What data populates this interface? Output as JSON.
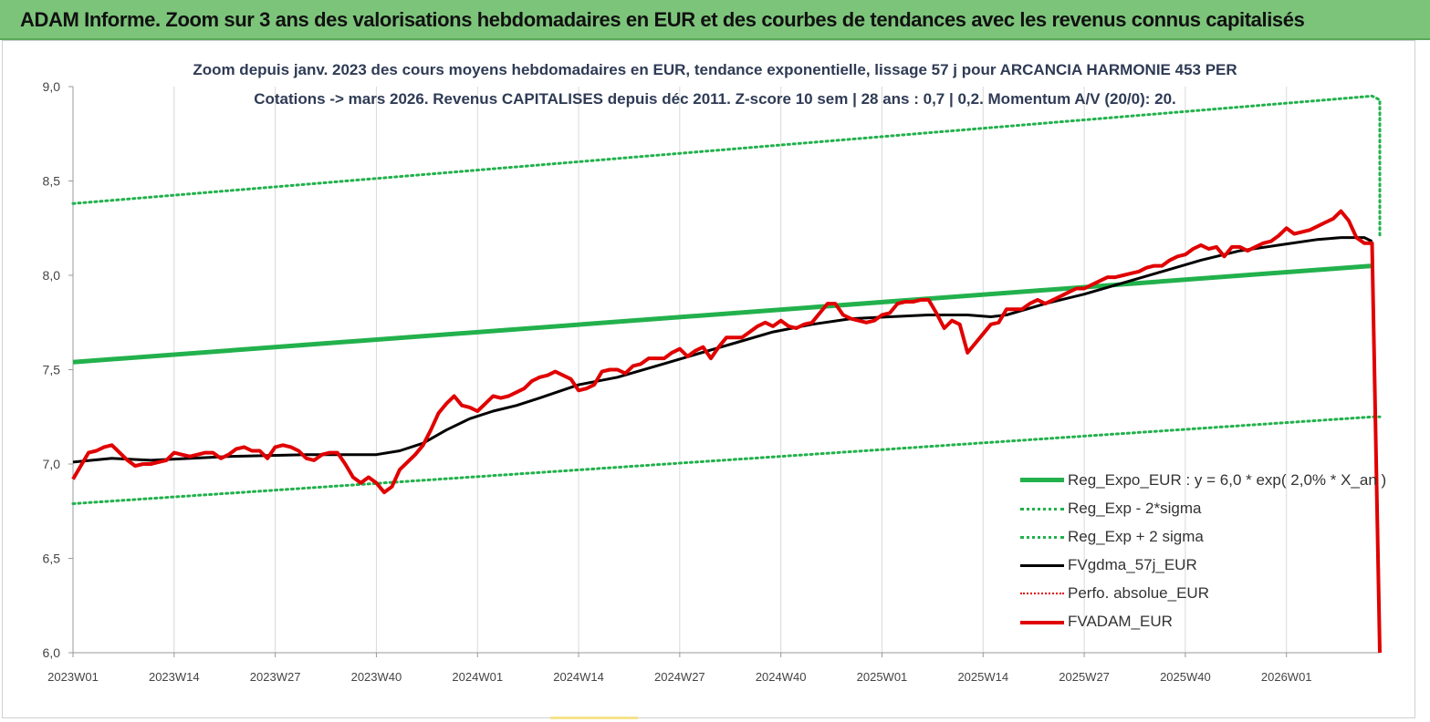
{
  "banner": {
    "title": "ADAM Informe. Zoom sur 3 ans des valorisations hebdomadaires en EUR et des courbes de tendances avec les revenus connus capitalisés"
  },
  "colors": {
    "banner_bg": "#7cc47a",
    "trend": "#22b14c",
    "fv_line": "#000000",
    "adam_line": "#e00000",
    "subtitle_text": "#2f3b55"
  },
  "chart_data": {
    "type": "line",
    "title": "Zoom depuis janv. 2023 des cours moyens hebdomadaires en EUR, tendance exponentielle, lissage 57 j pour ARCANCIA HARMONIE 453 PER",
    "subtitle": "Cotations -> mars 2026. Revenus CAPITALISES depuis déc 2011. Z-score 10 sem | 28 ans : 0,7 | 0,2. Momentum A/V (20/0): 20.",
    "xlabel": "",
    "ylabel": "",
    "ylim": [
      6.0,
      9.0
    ],
    "y_ticks": [
      "6,0",
      "6,5",
      "7,0",
      "7,5",
      "8,0",
      "8,5",
      "9,0"
    ],
    "x_ticks": [
      "2023W01",
      "2023W14",
      "2023W27",
      "2023W40",
      "2024W01",
      "2024W14",
      "2024W27",
      "2024W40",
      "2025W01",
      "2025W14",
      "2025W27",
      "2025W40",
      "2026W01"
    ],
    "week_count": 168,
    "grid": "vertical",
    "legend_position": "bottom-right",
    "series": [
      {
        "name": "Reg_Expo_EUR : y = 6,0 * exp( 2,0% *  X_an )",
        "style": "solid-thick",
        "color": "#22b14c",
        "x": [
          0,
          167
        ],
        "values": [
          7.54,
          8.05
        ]
      },
      {
        "name": "Reg_Exp - 2*sigma",
        "style": "dotted",
        "color": "#22b14c",
        "x": [
          0,
          167,
          168
        ],
        "values": [
          6.79,
          7.25,
          7.25
        ]
      },
      {
        "name": "Reg_Exp + 2 sigma",
        "style": "dotted",
        "color": "#22b14c",
        "x": [
          0,
          167,
          168,
          168
        ],
        "values": [
          8.38,
          8.95,
          8.93,
          8.2
        ]
      },
      {
        "name": "FVgdma_57j_EUR",
        "style": "solid",
        "color": "#000000",
        "x": [
          0,
          5,
          10,
          20,
          30,
          36,
          39,
          42,
          45,
          48,
          51,
          54,
          57,
          60,
          65,
          70,
          75,
          80,
          85,
          90,
          95,
          100,
          105,
          110,
          115,
          118,
          120,
          125,
          130,
          135,
          140,
          145,
          150,
          155,
          160,
          163,
          166,
          167
        ],
        "values": [
          7.01,
          7.03,
          7.02,
          7.04,
          7.05,
          7.05,
          7.05,
          7.07,
          7.11,
          7.18,
          7.24,
          7.28,
          7.31,
          7.35,
          7.42,
          7.46,
          7.52,
          7.58,
          7.64,
          7.7,
          7.74,
          7.77,
          7.78,
          7.79,
          7.79,
          7.78,
          7.79,
          7.85,
          7.9,
          7.96,
          8.02,
          8.08,
          8.13,
          8.16,
          8.19,
          8.2,
          8.2,
          8.18
        ]
      },
      {
        "name": "Perfo. absolue_EUR",
        "style": "dotted-thin",
        "color": "#e00000",
        "x": [],
        "values": []
      },
      {
        "name": "FVADAM_EUR",
        "style": "solid-thick",
        "color": "#e00000",
        "x": [
          0,
          1,
          2,
          3,
          4,
          5,
          6,
          7,
          8,
          9,
          10,
          11,
          12,
          13,
          14,
          15,
          16,
          17,
          18,
          19,
          20,
          21,
          22,
          23,
          24,
          25,
          26,
          27,
          28,
          29,
          30,
          31,
          32,
          33,
          34,
          35,
          36,
          37,
          38,
          39,
          40,
          41,
          42,
          43,
          44,
          45,
          46,
          47,
          48,
          49,
          50,
          51,
          52,
          53,
          54,
          55,
          56,
          57,
          58,
          59,
          60,
          61,
          62,
          63,
          64,
          65,
          66,
          67,
          68,
          69,
          70,
          71,
          72,
          73,
          74,
          75,
          76,
          77,
          78,
          79,
          80,
          81,
          82,
          83,
          84,
          85,
          86,
          87,
          88,
          89,
          90,
          91,
          92,
          93,
          94,
          95,
          96,
          97,
          98,
          99,
          100,
          101,
          102,
          103,
          104,
          105,
          106,
          107,
          108,
          109,
          110,
          111,
          112,
          113,
          114,
          115,
          116,
          117,
          118,
          119,
          120,
          121,
          122,
          123,
          124,
          125,
          126,
          127,
          128,
          129,
          130,
          131,
          132,
          133,
          134,
          135,
          136,
          137,
          138,
          139,
          140,
          141,
          142,
          143,
          144,
          145,
          146,
          147,
          148,
          149,
          150,
          151,
          152,
          153,
          154,
          155,
          156,
          157,
          158,
          159,
          160,
          161,
          162,
          163,
          164,
          165,
          166,
          167,
          168
        ],
        "values": [
          6.92,
          6.99,
          7.06,
          7.07,
          7.09,
          7.1,
          7.06,
          7.02,
          6.99,
          7.0,
          7.0,
          7.01,
          7.02,
          7.06,
          7.05,
          7.04,
          7.05,
          7.06,
          7.06,
          7.03,
          7.05,
          7.08,
          7.09,
          7.07,
          7.07,
          7.03,
          7.09,
          7.1,
          7.09,
          7.07,
          7.03,
          7.02,
          7.05,
          7.06,
          7.06,
          7.0,
          6.93,
          6.9,
          6.93,
          6.9,
          6.85,
          6.88,
          6.97,
          7.01,
          7.05,
          7.1,
          7.18,
          7.27,
          7.32,
          7.36,
          7.31,
          7.3,
          7.28,
          7.32,
          7.36,
          7.35,
          7.36,
          7.38,
          7.4,
          7.44,
          7.46,
          7.47,
          7.49,
          7.47,
          7.45,
          7.39,
          7.4,
          7.42,
          7.49,
          7.5,
          7.5,
          7.48,
          7.52,
          7.53,
          7.56,
          7.56,
          7.56,
          7.59,
          7.61,
          7.57,
          7.6,
          7.62,
          7.56,
          7.62,
          7.67,
          7.67,
          7.67,
          7.7,
          7.73,
          7.75,
          7.73,
          7.76,
          7.73,
          7.72,
          7.74,
          7.75,
          7.8,
          7.85,
          7.85,
          7.79,
          7.77,
          7.76,
          7.75,
          7.76,
          7.79,
          7.8,
          7.85,
          7.86,
          7.86,
          7.87,
          7.87,
          7.8,
          7.72,
          7.76,
          7.74,
          7.59,
          7.64,
          7.69,
          7.74,
          7.75,
          7.82,
          7.82,
          7.82,
          7.85,
          7.87,
          7.85,
          7.87,
          7.89,
          7.91,
          7.93,
          7.93,
          7.95,
          7.97,
          7.99,
          7.99,
          8.0,
          8.01,
          8.02,
          8.04,
          8.05,
          8.05,
          8.08,
          8.1,
          8.11,
          8.14,
          8.16,
          8.14,
          8.15,
          8.1,
          8.15,
          8.15,
          8.13,
          8.15,
          8.17,
          8.18,
          8.21,
          8.25,
          8.22,
          8.23,
          8.24,
          8.26,
          8.28,
          8.3,
          8.34,
          8.29,
          8.2,
          8.17,
          8.17,
          6.0
        ]
      }
    ]
  }
}
